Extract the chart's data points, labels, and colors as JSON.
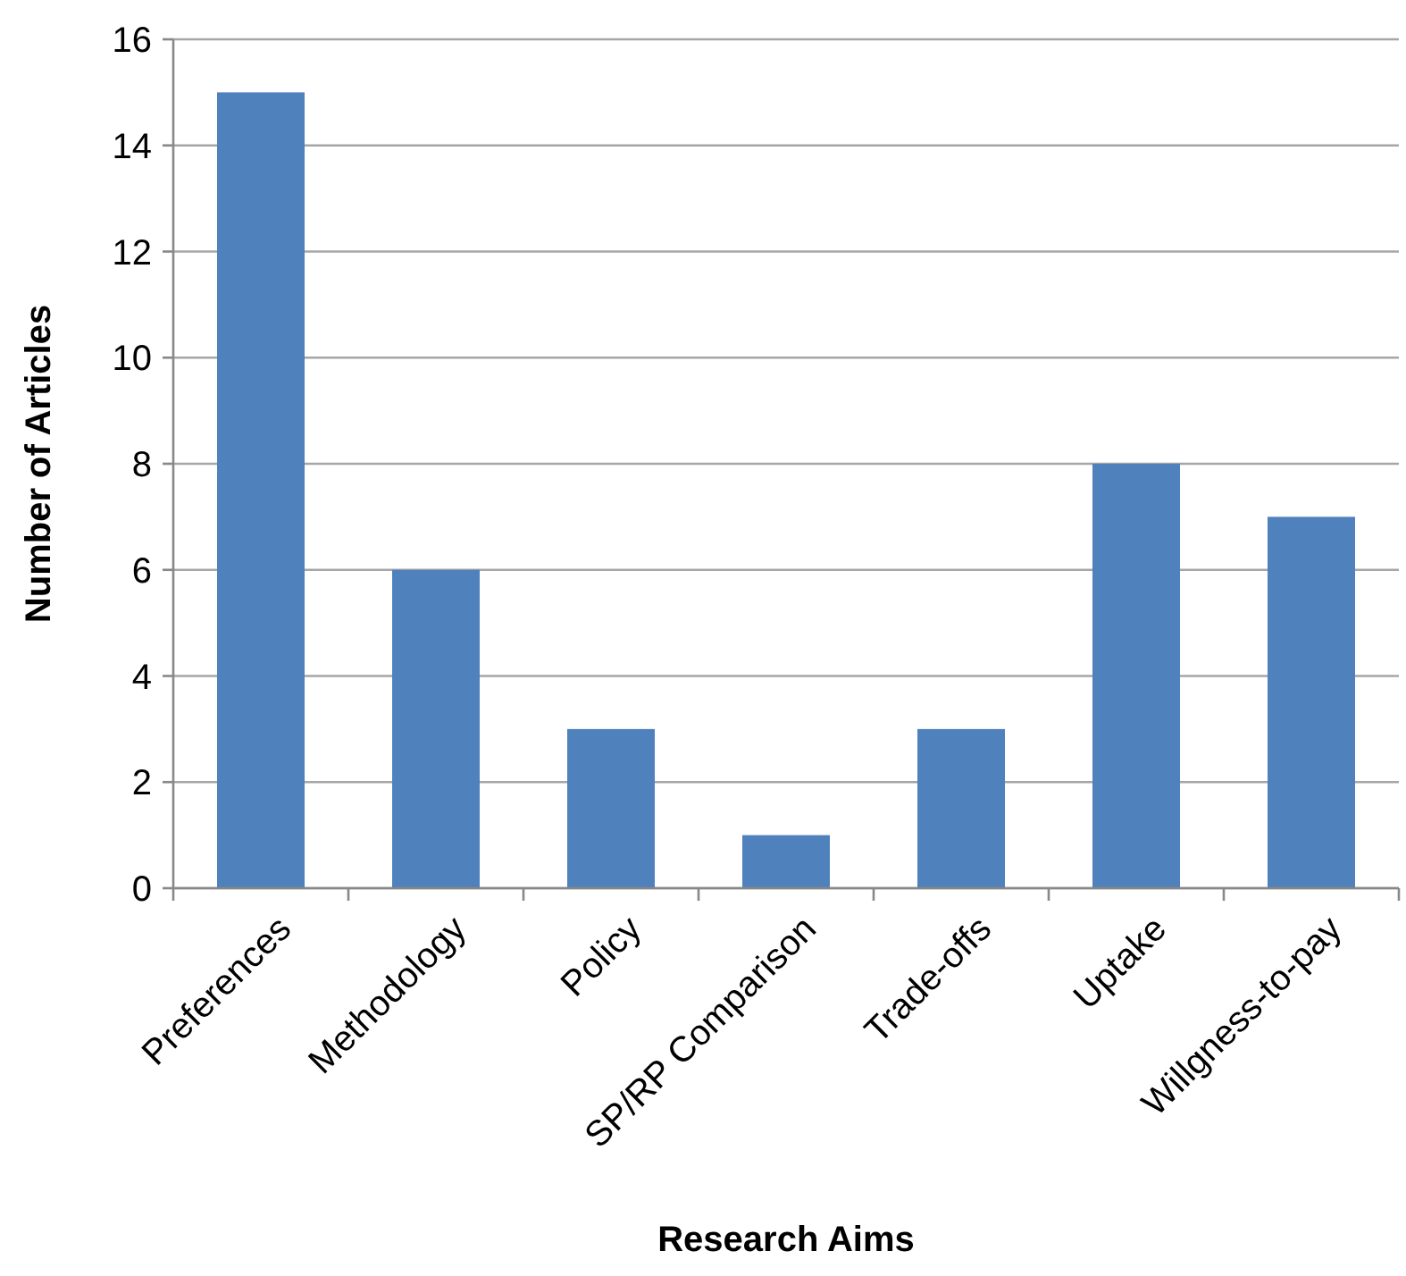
{
  "chart_data": {
    "type": "bar",
    "xlabel": "Research Aims",
    "ylabel": "Number of Articles",
    "categories": [
      "Preferences",
      "Methodology",
      "Policy",
      "SP/RP Comparison",
      "Trade-offs",
      "Uptake",
      "Willgness-to-pay"
    ],
    "values": [
      15,
      6,
      3,
      1,
      3,
      8,
      7
    ],
    "color": "#4f81bd",
    "ylim": [
      0,
      16
    ],
    "yticks": [
      0,
      2,
      4,
      6,
      8,
      10,
      12,
      14,
      16
    ],
    "grid": "y"
  }
}
